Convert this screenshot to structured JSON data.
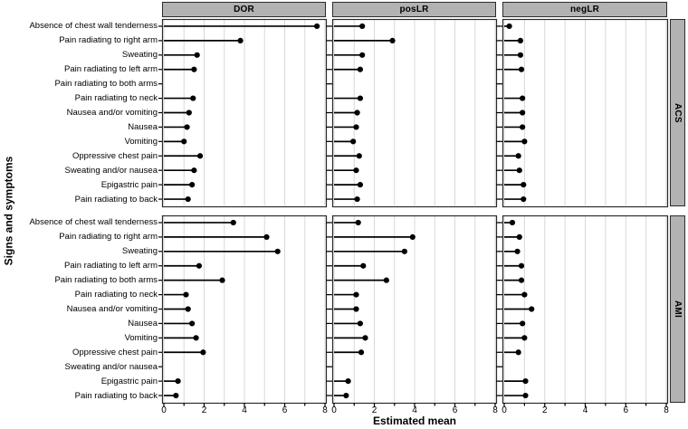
{
  "chart_data": {
    "type": "lollipop",
    "orientation": "horizontal",
    "title": "",
    "xlabel": "Estimated mean",
    "ylabel": "Signs and symptoms",
    "xlim": [
      0,
      8
    ],
    "x_major_ticks": [
      0,
      2,
      4,
      6,
      8
    ],
    "x_minor_ticks": [
      1,
      3,
      5,
      7
    ],
    "grid": "vertical light gridlines at every integer 0-8",
    "legend": "none",
    "facet_columns": [
      "DOR",
      "posLR",
      "negLR"
    ],
    "facet_rows": [
      "ACS",
      "AMI"
    ],
    "categories": [
      "Absence of chest wall tenderness",
      "Pain radiating to right arm",
      "Sweating",
      "Pain radiating to left arm",
      "Pain radiating to both arms",
      "Pain radiating to neck",
      "Nausea and/or vomiting",
      "Nausea",
      "Vomiting",
      "Oppressive chest pain",
      "Sweating and/or nausea",
      "Epigastric pain",
      "Pain radiating to back"
    ],
    "series": [
      {
        "row": "ACS",
        "col": "DOR",
        "values": [
          7.6,
          3.8,
          1.65,
          1.5,
          null,
          1.45,
          1.25,
          1.15,
          1.0,
          1.8,
          1.5,
          1.4,
          1.2
        ]
      },
      {
        "row": "ACS",
        "col": "posLR",
        "values": [
          1.4,
          2.9,
          1.4,
          1.3,
          null,
          1.3,
          1.15,
          1.1,
          0.95,
          1.25,
          1.1,
          1.3,
          1.15
        ]
      },
      {
        "row": "ACS",
        "col": "negLR",
        "values": [
          0.25,
          0.8,
          0.8,
          0.85,
          null,
          0.9,
          0.9,
          0.9,
          1.0,
          0.7,
          0.75,
          0.95,
          0.95
        ]
      },
      {
        "row": "AMI",
        "col": "DOR",
        "values": [
          3.45,
          5.1,
          5.65,
          1.75,
          2.9,
          1.1,
          1.2,
          1.4,
          1.6,
          1.95,
          null,
          0.7,
          0.6
        ]
      },
      {
        "row": "AMI",
        "col": "posLR",
        "values": [
          1.2,
          3.9,
          3.5,
          1.45,
          2.6,
          1.1,
          1.1,
          1.3,
          1.55,
          1.35,
          null,
          0.7,
          0.6
        ]
      },
      {
        "row": "AMI",
        "col": "negLR",
        "values": [
          0.4,
          0.75,
          0.65,
          0.85,
          0.85,
          1.0,
          1.35,
          0.9,
          1.0,
          0.7,
          null,
          1.05,
          1.05
        ]
      }
    ],
    "colors": {
      "strip_bg": "#b2b2b2",
      "panel_border": "#2b2b2b",
      "gridline": "#d8d8d8",
      "data": "#000000",
      "background": "#ffffff"
    }
  }
}
